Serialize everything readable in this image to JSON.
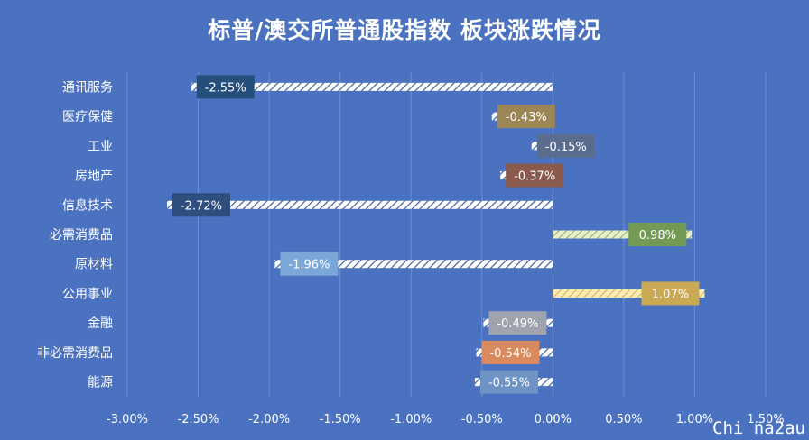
{
  "chart_data": {
    "type": "bar",
    "orientation": "horizontal",
    "title": "标普/澳交所普通股指数 板块涨跌情况",
    "categories": [
      "通讯服务",
      "医疗保健",
      "工业",
      "房地产",
      "信息技术",
      "必需消费品",
      "原材料",
      "公用事业",
      "金融",
      "非必需消费品",
      "能源"
    ],
    "values": [
      -2.55,
      -0.43,
      -0.15,
      -0.37,
      -2.72,
      0.98,
      -1.96,
      1.07,
      -0.49,
      -0.54,
      -0.55
    ],
    "labels": [
      "-2.55%",
      "-0.43%",
      "-0.15%",
      "-0.37%",
      "-2.72%",
      "0.98%",
      "-1.96%",
      "1.07%",
      "-0.49%",
      "-0.54%",
      "-0.55%"
    ],
    "label_colors": [
      "#264e7a",
      "#9c8655",
      "#5b6d8f",
      "#8a5a4c",
      "#2e4e7e",
      "#739a55",
      "#7aa6d8",
      "#caa955",
      "#9fa3ad",
      "#d98a5e",
      "#6f93c4"
    ],
    "bar_colors": [
      "#ffffff",
      "#ffffff",
      "#ffffff",
      "#ffffff",
      "#ffffff",
      "#d9e6b8",
      "#ffffff",
      "#f3d98c",
      "#ffffff",
      "#ffffff",
      "#ffffff"
    ],
    "xlim": [
      -3.0,
      1.5
    ],
    "xticks": [
      "-3.00%",
      "-2.50%",
      "-2.00%",
      "-1.50%",
      "-1.00%",
      "-0.50%",
      "0.00%",
      "0.50%",
      "1.00%",
      "1.50%"
    ],
    "grid": true,
    "legend": "none"
  },
  "watermark": "Chi na2au",
  "colors": {
    "background": "#4a72c0",
    "grid": "#6f8fd0",
    "text": "#ffffff"
  }
}
